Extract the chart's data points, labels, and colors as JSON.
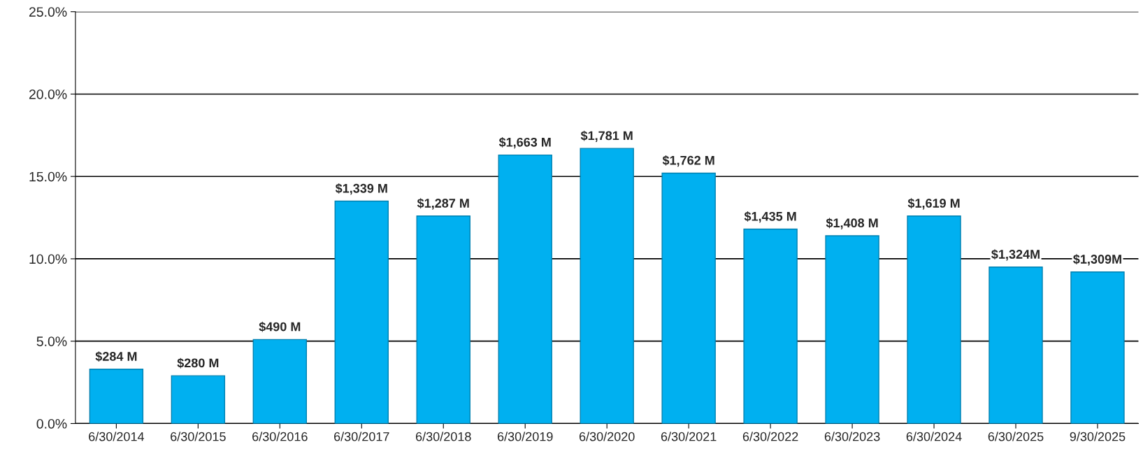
{
  "chart_data": {
    "type": "bar",
    "categories": [
      "6/30/2014",
      "6/30/2015",
      "6/30/2016",
      "6/30/2017",
      "6/30/2018",
      "6/30/2019",
      "6/30/2020",
      "6/30/2021",
      "6/30/2022",
      "6/30/2023",
      "6/30/2024",
      "6/30/2025",
      "9/30/2025"
    ],
    "values": [
      3.3,
      2.9,
      5.1,
      13.5,
      12.6,
      16.3,
      16.7,
      15.2,
      11.8,
      11.4,
      12.6,
      9.5,
      9.2
    ],
    "annotations": [
      {
        "text": "$284 M",
        "x": "6/30/2014",
        "y": 3.3
      },
      {
        "text": "$280 M",
        "x": "6/30/2015",
        "y": 2.9
      },
      {
        "text": "$490 M",
        "x": "6/30/2016",
        "y": 5.1
      },
      {
        "text": "$1,339 M",
        "x": "6/30/2017",
        "y": 13.5
      },
      {
        "text": "$1,287 M",
        "x": "6/30/2018",
        "y": 12.6
      },
      {
        "text": "$1,663 M",
        "x": "6/30/2019",
        "y": 16.3
      },
      {
        "text": "$1,781 M",
        "x": "6/30/2020",
        "y": 16.7
      },
      {
        "text": "$1,762 M",
        "x": "6/30/2021",
        "y": 15.2
      },
      {
        "text": "$1,435 M",
        "x": "6/30/2022",
        "y": 11.8
      },
      {
        "text": "$1,408 M",
        "x": "6/30/2023",
        "y": 11.4
      },
      {
        "text": "$1,619 M",
        "x": "6/30/2024",
        "y": 12.6
      },
      {
        "text": "$1,324M",
        "x": "6/30/2025",
        "y": 9.5
      },
      {
        "text": "$1,309M",
        "x": "9/30/2025",
        "y": 9.2
      }
    ],
    "color": "#00b0f0",
    "ylim": [
      0,
      25
    ],
    "yticks": [
      {
        "value": 0,
        "label": "0.0%"
      },
      {
        "value": 5,
        "label": "5.0%"
      },
      {
        "value": 10,
        "label": "10.0%"
      },
      {
        "value": 15,
        "label": "15.0%"
      },
      {
        "value": 20,
        "label": "20.0%"
      },
      {
        "value": 25,
        "label": "25.0%"
      }
    ],
    "grid": "y"
  }
}
